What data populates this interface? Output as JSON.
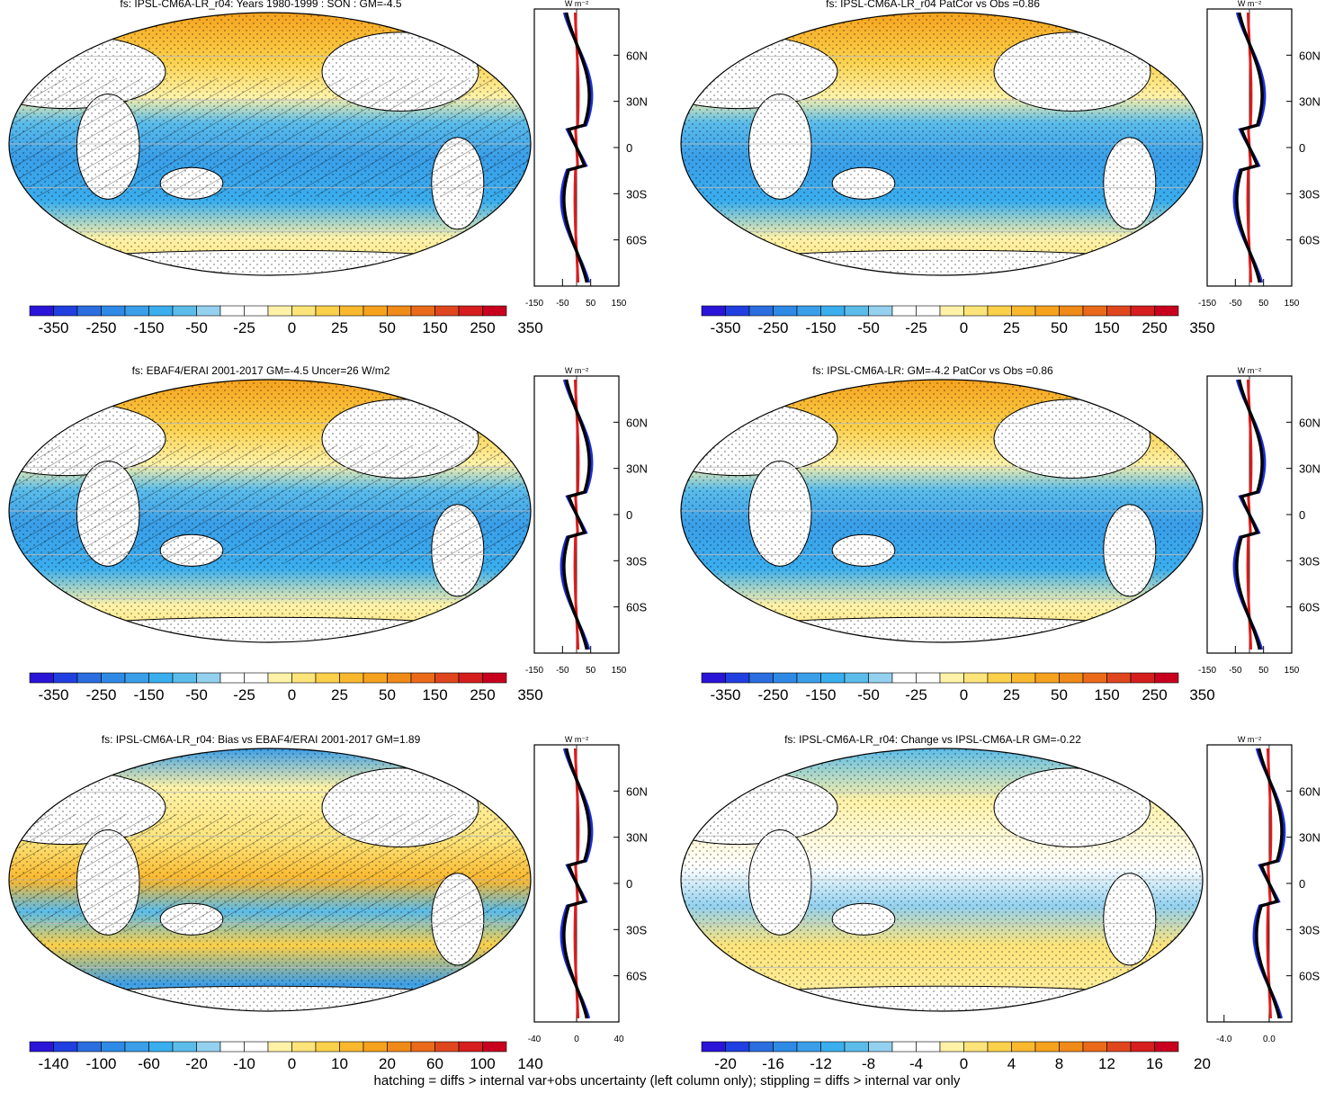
{
  "chart_data": [
    {
      "type": "heatmap",
      "title": "fs: IPSL-CM6A-LR_r04: Years 1980-1999 : SON : GM=-4.5",
      "colorbar_labels": [
        "-350",
        "-250",
        "-150",
        "-50",
        "-25",
        "0",
        "25",
        "50",
        "150",
        "250",
        "350"
      ],
      "profile": {
        "unit": "W m⁻²",
        "xticks": [
          "-150",
          "-50",
          "50",
          "150"
        ],
        "xlim": [
          -150,
          150
        ],
        "yticks": [
          "60N",
          "30N",
          "0",
          "30S",
          "60S"
        ]
      }
    },
    {
      "type": "heatmap",
      "title": "fs: IPSL-CM6A-LR_r04 PatCor vs Obs =0.86",
      "colorbar_labels": [
        "-350",
        "-250",
        "-150",
        "-50",
        "-25",
        "0",
        "25",
        "50",
        "150",
        "250",
        "350"
      ],
      "profile": {
        "unit": "W m⁻²",
        "xticks": [
          "-150",
          "-50",
          "50",
          "150"
        ],
        "xlim": [
          -150,
          150
        ],
        "yticks": [
          "60N",
          "30N",
          "0",
          "30S",
          "60S"
        ]
      }
    },
    {
      "type": "heatmap",
      "title": "fs: EBAF4/ERAI 2001-2017 GM=-4.5 Uncer=26 W/m2",
      "colorbar_labels": [
        "-350",
        "-250",
        "-150",
        "-50",
        "-25",
        "0",
        "25",
        "50",
        "150",
        "250",
        "350"
      ],
      "profile": {
        "unit": "W m⁻²",
        "xticks": [
          "-150",
          "-50",
          "50",
          "150"
        ],
        "xlim": [
          -150,
          150
        ],
        "yticks": [
          "60N",
          "30N",
          "0",
          "30S",
          "60S"
        ]
      }
    },
    {
      "type": "heatmap",
      "title": "fs: IPSL-CM6A-LR: GM=-4.2 PatCor vs Obs =0.86",
      "colorbar_labels": [
        "-350",
        "-250",
        "-150",
        "-50",
        "-25",
        "0",
        "25",
        "50",
        "150",
        "250",
        "350"
      ],
      "profile": {
        "unit": "W m⁻²",
        "xticks": [
          "-150",
          "-50",
          "50",
          "150"
        ],
        "xlim": [
          -150,
          150
        ],
        "yticks": [
          "60N",
          "30N",
          "0",
          "30S",
          "60S"
        ]
      }
    },
    {
      "type": "heatmap",
      "title": "fs: IPSL-CM6A-LR_r04: Bias vs EBAF4/ERAI 2001-2017  GM=1.89",
      "colorbar_labels": [
        "-140",
        "-100",
        "-60",
        "-20",
        "-10",
        "0",
        "10",
        "20",
        "60",
        "100",
        "140"
      ],
      "profile": {
        "unit": "W m⁻²",
        "xticks": [
          "-40",
          "0",
          "40"
        ],
        "xlim": [
          -40,
          40
        ],
        "yticks": [
          "60N",
          "30N",
          "0",
          "30S",
          "60S"
        ]
      }
    },
    {
      "type": "heatmap",
      "title": "fs: IPSL-CM6A-LR_r04: Change vs IPSL-CM6A-LR GM=-0.22",
      "colorbar_labels": [
        "-20",
        "-16",
        "-12",
        "-8",
        "-4",
        "0",
        "4",
        "8",
        "12",
        "16",
        "20"
      ],
      "profile": {
        "unit": "W m⁻²",
        "xticks": [
          "-4.0",
          "0.0"
        ],
        "xlim": [
          -5.5,
          2
        ],
        "yticks": [
          "60N",
          "30N",
          "0",
          "30S",
          "60S"
        ]
      }
    }
  ],
  "colors": {
    "cold": [
      "#2a14d8",
      "#1f3fe0",
      "#2a6ee0",
      "#2f8ae6",
      "#3a9ee8",
      "#3aaeee",
      "#5bbcea",
      "#93d1ef",
      "#ffffff",
      "#ffffff",
      "#fff2a8",
      "#fde47a",
      "#fbd04a",
      "#f9b82e",
      "#f6a21e",
      "#f08a18",
      "#ea6a1a",
      "#e0461e",
      "#d61e1e",
      "#c8001e"
    ]
  },
  "footer": "hatching = diffs > internal var+obs uncertainty (left column only); stippling = diffs > internal var only"
}
